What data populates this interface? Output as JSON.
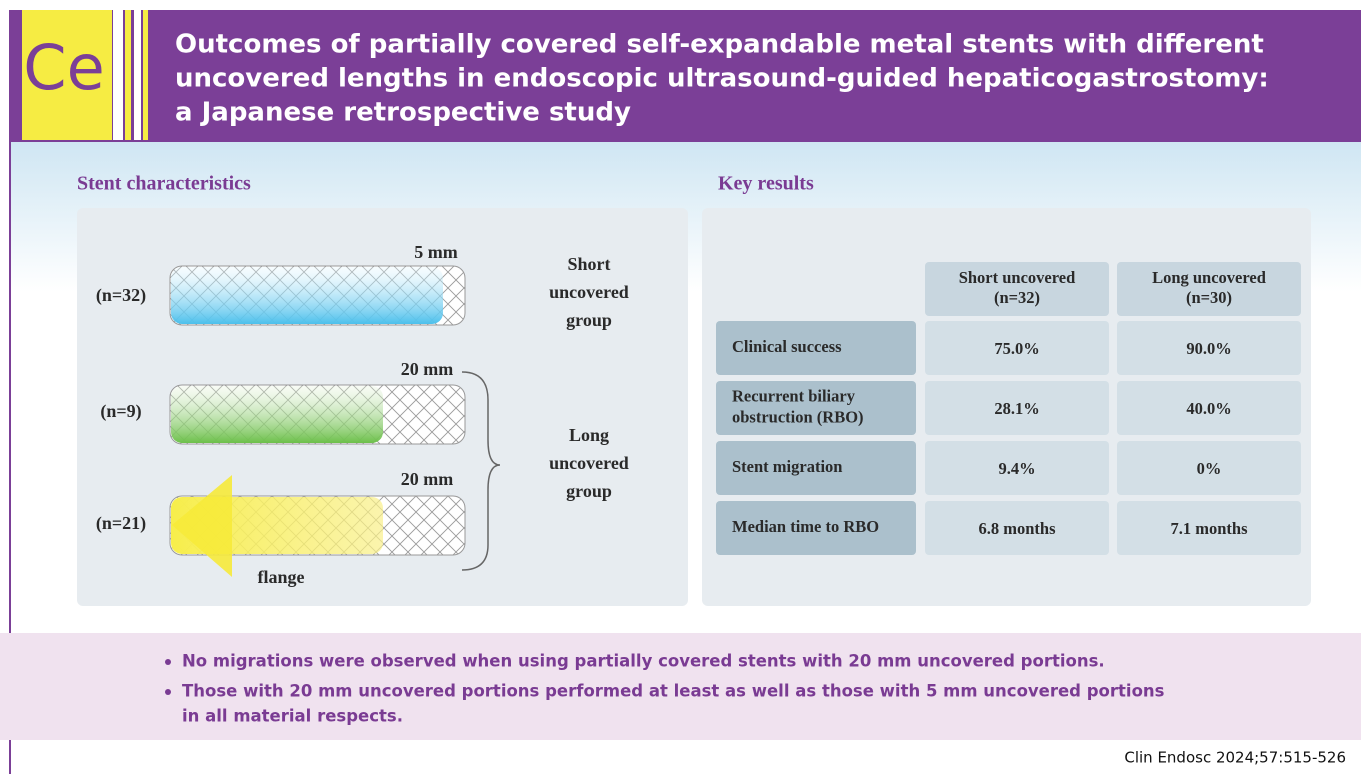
{
  "header": {
    "logo": "Ce",
    "title_lines": [
      "Outcomes of partially covered self-expandable metal stents with different",
      "uncovered lengths in endoscopic ultrasound-guided hepaticogastrostomy:",
      "a Japanese retrospective study"
    ]
  },
  "left_panel": {
    "title": "Stent characteristics",
    "stents": [
      {
        "n_label": "(n=32)",
        "length": "5 mm"
      },
      {
        "n_label": "(n=9)",
        "length": "20 mm"
      },
      {
        "n_label": "(n=21)",
        "length": "20 mm"
      }
    ],
    "groups": [
      [
        "Short",
        "uncovered",
        "group"
      ],
      [
        "Long",
        "uncovered",
        "group"
      ]
    ],
    "flange": "flange"
  },
  "right_panel": {
    "title": "Key results",
    "table": {
      "columns": [
        {
          "name": "Short uncovered",
          "n": "(n=32)"
        },
        {
          "name": "Long uncovered",
          "n": "(n=30)"
        }
      ],
      "rows": [
        {
          "label": [
            "Clinical success"
          ],
          "short": "75.0%",
          "long": "90.0%"
        },
        {
          "label": [
            "Recurrent biliary",
            "obstruction (RBO)"
          ],
          "short": "28.1%",
          "long": "40.0%"
        },
        {
          "label": [
            "Stent migration"
          ],
          "short": "9.4%",
          "long": "0%"
        },
        {
          "label": [
            "Median time to RBO"
          ],
          "short": "6.8 months",
          "long": "7.1 months"
        }
      ]
    }
  },
  "bullets": [
    [
      "No migrations were observed when using partially covered stents with 20 mm uncovered portions."
    ],
    [
      "Those with 20 mm uncovered portions performed at least as well as those with 5 mm uncovered portions",
      "in all material respects."
    ]
  ],
  "citation": "Clin Endosc 2024;57:515-526"
}
